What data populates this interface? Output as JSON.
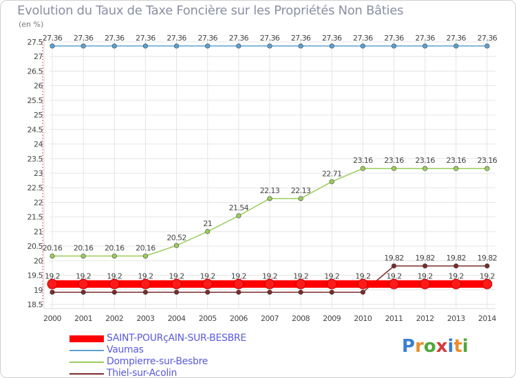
{
  "title": "Evolution du Taux de Taxe Foncière sur les Propriétés Non Bâties",
  "unit": "(en %)",
  "logo": {
    "text": "Proxiti",
    "colors": [
      "#3a7fd0",
      "#e8902a",
      "#4fa83a",
      "#d23a3a",
      "#3a7fd0",
      "#e8902a",
      "#4fa83a"
    ]
  },
  "chart_data": {
    "type": "line",
    "title": "Evolution du Taux de Taxe Foncière sur les Propriétés Non Bâties",
    "ylabel": "(en %)",
    "xlabel": "",
    "x": [
      "2000",
      "2001",
      "2002",
      "2003",
      "2004",
      "2005",
      "2006",
      "2007",
      "2008",
      "2009",
      "2010",
      "2011",
      "2012",
      "2013",
      "2014"
    ],
    "ylim": [
      18.5,
      27.5
    ],
    "yticks": [
      "18.5",
      "19",
      "19.5",
      "20",
      "20.5",
      "21",
      "21.5",
      "22",
      "22.5",
      "23",
      "23.5",
      "24",
      "24.5",
      "25",
      "25.5",
      "26",
      "26.5",
      "27",
      "27.5"
    ],
    "grid": true,
    "legend_position": "bottom-left",
    "series": [
      {
        "name": "SAINT-POURçAIN-SUR-BESBRE",
        "color": "#ff0000",
        "values": [
          19.2,
          19.2,
          19.2,
          19.2,
          19.2,
          19.2,
          19.2,
          19.2,
          19.2,
          19.2,
          19.2,
          19.2,
          19.2,
          19.2,
          19.2
        ],
        "labels": [
          "19.2",
          "19.2",
          "19.2",
          "19.2",
          "19.2",
          "19.2",
          "19.2",
          "19.2",
          "19.2",
          "19.2",
          "19.2",
          "19.2",
          "19.2",
          "19.2",
          "19.2"
        ]
      },
      {
        "name": "Vaumas",
        "color": "#5ba0d0",
        "values": [
          27.36,
          27.36,
          27.36,
          27.36,
          27.36,
          27.36,
          27.36,
          27.36,
          27.36,
          27.36,
          27.36,
          27.36,
          27.36,
          27.36,
          27.36
        ],
        "labels": [
          "27.36",
          "27.36",
          "27.36",
          "27.36",
          "27.36",
          "27.36",
          "27.36",
          "27.36",
          "27.36",
          "27.36",
          "27.36",
          "27.36",
          "27.36",
          "27.36",
          "27.36"
        ]
      },
      {
        "name": "Dompierre-sur-Besbre",
        "color": "#9acd5a",
        "values": [
          20.16,
          20.16,
          20.16,
          20.16,
          20.52,
          21,
          21.54,
          22.13,
          22.13,
          22.71,
          23.16,
          23.16,
          23.16,
          23.16,
          23.16
        ],
        "labels": [
          "20.16",
          "20.16",
          "20.16",
          "20.16",
          "20.52",
          "21",
          "21.54",
          "22.13",
          "22.13",
          "22.71",
          "23.16",
          "23.16",
          "23.16",
          "23.16",
          "23.16"
        ]
      },
      {
        "name": "Thiel-sur-Acolin",
        "color": "#7a2a2a",
        "values": [
          18.92,
          18.92,
          18.92,
          18.92,
          18.92,
          18.92,
          18.92,
          18.92,
          18.92,
          18.92,
          18.92,
          19.82,
          19.82,
          19.82,
          19.82
        ],
        "labels": [
          "",
          "",
          "",
          "",
          "",
          "",
          "",
          "",
          "",
          "",
          "",
          "19.82",
          "19.82",
          "19.82",
          "19.82"
        ]
      }
    ]
  }
}
